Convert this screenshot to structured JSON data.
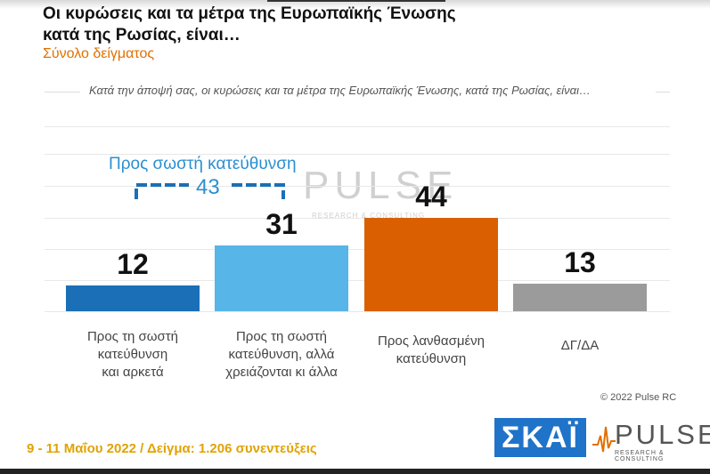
{
  "title": "Οι κυρώσεις και τα μέτρα της Ευρωπαϊκής Ένωσης κατά της Ρωσίας, είναι…",
  "subtitle": "Σύνολο δείγματος",
  "question": "Κατά την άποψή σας, οι κυρώσεις και τα μέτρα της Ευρωπαϊκής Ένωσης, κατά της Ρωσίας, είναι…",
  "bracket": {
    "label": "Προς σωστή κατεύθυνση",
    "value": "43"
  },
  "watermark": {
    "text": "PULSE",
    "sub": "RESEARCH & CONSULTING"
  },
  "copyright": "© 2022 Pulse RC",
  "footer": "9 - 11  Μαΐου  2022  /  Δείγμα:  1.206 συνεντεύξεις",
  "logos": {
    "skai": "ΣΚΑΪ",
    "pulse": "PULSE",
    "pulse_sub": "RESEARCH & CONSULTING"
  },
  "colors": {
    "dark_blue": "#1a6fb7",
    "light_blue": "#57b5e8",
    "orange": "#d95f00",
    "gray": "#9b9b9b",
    "accent": "#e07000"
  },
  "chart_data": {
    "type": "bar",
    "title": "Οι κυρώσεις και τα μέτρα της Ευρωπαϊκής Ένωσης κατά της Ρωσίας, είναι…",
    "categories": [
      "Προς τη σωστή κατεύθυνση και αρκετά",
      "Προς τη σωστή κατεύθυνση, αλλά χρειάζονται κι άλλα",
      "Προς λανθασμένη κατεύθυνση",
      "ΔΓ/ΔΑ"
    ],
    "category_lines": [
      [
        "Προς τη σωστή",
        "κατεύθυνση",
        "και αρκετά"
      ],
      [
        "Προς τη σωστή",
        "κατεύθυνση, αλλά",
        "χρειάζονται κι άλλα"
      ],
      [
        "Προς λανθασμένη",
        "κατεύθυνση"
      ],
      [
        "ΔΓ/ΔΑ"
      ]
    ],
    "values": [
      12,
      31,
      44,
      13
    ],
    "value_labels": [
      "12",
      "31",
      "44",
      "13"
    ],
    "bar_colors": [
      "#1a6fb7",
      "#57b5e8",
      "#d95f00",
      "#9b9b9b"
    ],
    "ylim": [
      0,
      50
    ],
    "grid": true
  }
}
